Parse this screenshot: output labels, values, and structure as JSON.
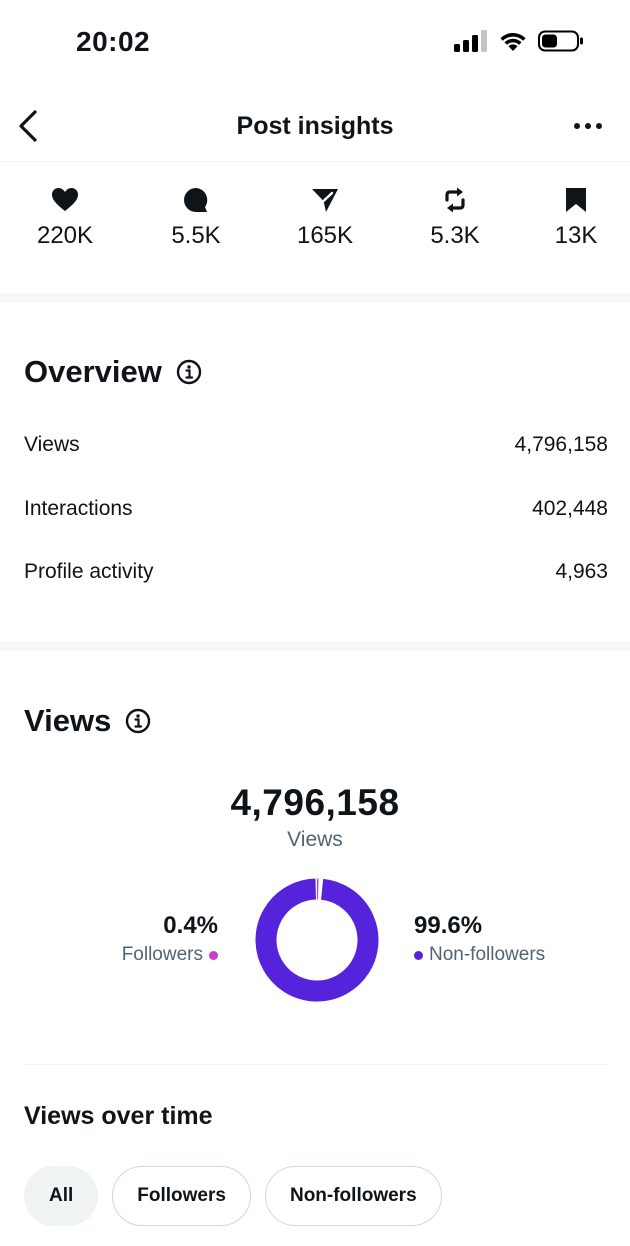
{
  "status_bar": {
    "time": "20:02"
  },
  "header": {
    "title": "Post insights",
    "back_icon": "chevron-left-icon",
    "more_icon": "more-horizontal-icon"
  },
  "engagement": [
    {
      "icon": "heart-icon",
      "value": "220K"
    },
    {
      "icon": "reply-icon",
      "value": "5.5K"
    },
    {
      "icon": "share-icon",
      "value": "165K"
    },
    {
      "icon": "repost-icon",
      "value": "5.3K"
    },
    {
      "icon": "bookmark-icon",
      "value": "13K"
    }
  ],
  "overview": {
    "title": "Overview",
    "rows": [
      {
        "label": "Views",
        "value": "4,796,158"
      },
      {
        "label": "Interactions",
        "value": "402,448"
      },
      {
        "label": "Profile activity",
        "value": "4,963"
      }
    ]
  },
  "views": {
    "title": "Views",
    "total": "4,796,158",
    "total_label": "Views",
    "followers": {
      "pct": "0.4%",
      "label": "Followers",
      "fraction": 0.004,
      "color": "#c63fce"
    },
    "non_followers": {
      "pct": "99.6%",
      "label": "Non-followers",
      "fraction": 0.996,
      "color": "#5523dc"
    }
  },
  "views_over_time": {
    "title": "Views over time",
    "filters": [
      {
        "label": "All",
        "active": true
      },
      {
        "label": "Followers",
        "active": false
      },
      {
        "label": "Non-followers",
        "active": false
      }
    ]
  }
}
